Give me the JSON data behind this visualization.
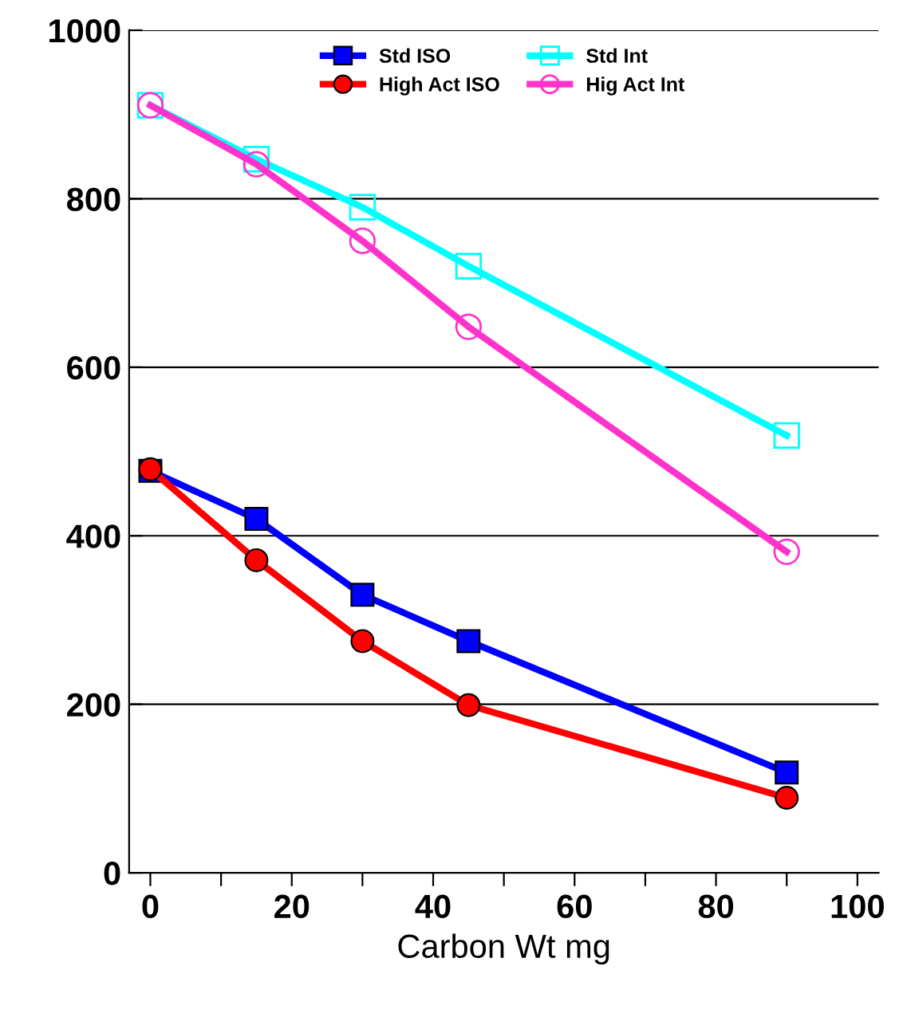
{
  "chart_data": {
    "type": "line",
    "xlabel": "Carbon Wt mg",
    "xlim": [
      -3,
      103
    ],
    "ylim": [
      0,
      1000
    ],
    "xticks": [
      0,
      {
        "value": 10,
        "label": null
      },
      20,
      {
        "value": 30,
        "label": null
      },
      40,
      {
        "value": 50,
        "label": null
      },
      60,
      {
        "value": 70,
        "label": null
      },
      80,
      {
        "value": 90,
        "label": null
      },
      100
    ],
    "yticks": [
      0,
      200,
      400,
      600,
      800,
      1000
    ],
    "grid": "y",
    "legend": "top",
    "x": [
      0,
      15,
      30,
      45,
      90
    ],
    "series": [
      {
        "name": "Std ISO",
        "color": "#0000ff",
        "marker": "square",
        "values": [
          477,
          420,
          330,
          275,
          119
        ]
      },
      {
        "name": "High Act ISO",
        "color": "#ff0000",
        "marker": "circle",
        "values": [
          479,
          371,
          275,
          199,
          89
        ]
      },
      {
        "name": "Std Int",
        "color": "#00ffff",
        "marker": "square",
        "values": [
          911,
          847,
          790,
          720,
          519
        ]
      },
      {
        "name": "Hig Act Int",
        "color": "#ff33cc",
        "marker": "circle",
        "values": [
          911,
          841,
          750,
          648,
          381
        ]
      }
    ]
  }
}
